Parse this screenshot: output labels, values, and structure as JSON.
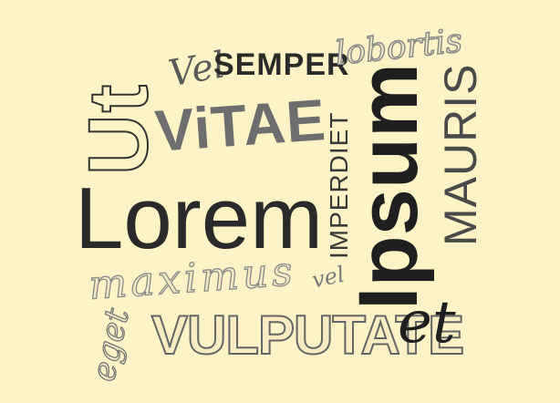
{
  "background_color": "#fdf3c7",
  "words": {
    "ut": "Ut",
    "vel_top": "Vel",
    "semper": "SEMPER",
    "lobortis": "lobortis",
    "vitae": "ViTAE",
    "imperdiet": "IMPERDIET",
    "ipsum": "Ipsum",
    "mauris": "MAURIS",
    "lorem": "Lorem",
    "maximus": "maximus",
    "vel_small": "vel",
    "eget": "eget",
    "vulputate": "VULPUTATE",
    "et": "et"
  },
  "colors": {
    "dark": "#2b2b2b",
    "mid": "#6b6b6b",
    "light": "#9a9a9a",
    "outline": "#333333"
  }
}
